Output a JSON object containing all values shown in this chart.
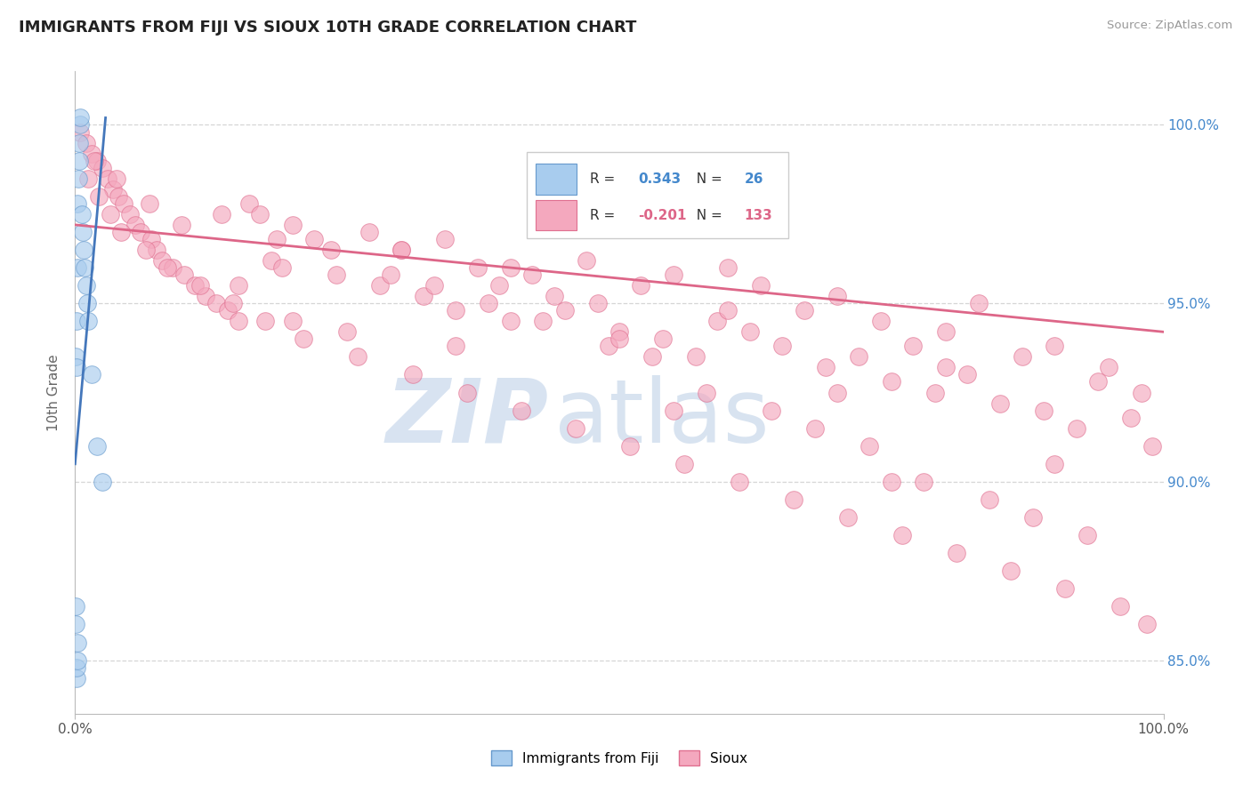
{
  "title": "IMMIGRANTS FROM FIJI VS SIOUX 10TH GRADE CORRELATION CHART",
  "source_text": "Source: ZipAtlas.com",
  "ylabel": "10th Grade",
  "xlim": [
    0.0,
    100.0
  ],
  "ylim": [
    83.5,
    101.5
  ],
  "x_tick_labels": [
    "0.0%",
    "100.0%"
  ],
  "y_tick_labels_right": [
    "85.0%",
    "90.0%",
    "95.0%",
    "100.0%"
  ],
  "y_tick_vals_right": [
    85.0,
    90.0,
    95.0,
    100.0
  ],
  "fiji_R": 0.343,
  "fiji_N": 26,
  "sioux_R": -0.201,
  "sioux_N": 133,
  "fiji_color": "#A8CCEE",
  "sioux_color": "#F4A8BE",
  "fiji_edge_color": "#6699CC",
  "sioux_edge_color": "#E07090",
  "fiji_trend_color": "#4477BB",
  "sioux_trend_color": "#DD6688",
  "dashed_line_color": "#CCCCCC",
  "watermark_zip_color": "#C8D8EC",
  "watermark_atlas_color": "#B8CCE4",
  "fiji_x": [
    0.05,
    0.1,
    0.15,
    0.2,
    0.25,
    0.3,
    0.35,
    0.4,
    0.45,
    0.5,
    0.6,
    0.7,
    0.8,
    0.9,
    1.0,
    1.1,
    1.2,
    1.5,
    2.0,
    2.5,
    0.1,
    0.15,
    0.2,
    0.25,
    0.05,
    0.08
  ],
  "fiji_y": [
    93.5,
    93.2,
    94.5,
    96.0,
    97.8,
    98.5,
    99.0,
    99.5,
    100.0,
    100.2,
    97.5,
    97.0,
    96.5,
    96.0,
    95.5,
    95.0,
    94.5,
    93.0,
    91.0,
    90.0,
    84.5,
    84.8,
    85.0,
    85.5,
    86.0,
    86.5
  ],
  "sioux_x": [
    0.5,
    1.0,
    1.5,
    2.0,
    2.5,
    3.0,
    3.5,
    4.0,
    4.5,
    5.0,
    5.5,
    6.0,
    7.0,
    7.5,
    8.0,
    9.0,
    10.0,
    11.0,
    12.0,
    13.0,
    14.0,
    15.0,
    16.0,
    17.0,
    18.0,
    19.0,
    20.0,
    22.0,
    24.0,
    25.0,
    27.0,
    28.0,
    30.0,
    32.0,
    34.0,
    35.0,
    37.0,
    39.0,
    40.0,
    42.0,
    44.0,
    45.0,
    47.0,
    48.0,
    50.0,
    52.0,
    54.0,
    55.0,
    57.0,
    59.0,
    60.0,
    62.0,
    63.0,
    65.0,
    67.0,
    69.0,
    70.0,
    72.0,
    74.0,
    75.0,
    77.0,
    79.0,
    80.0,
    82.0,
    83.0,
    85.0,
    87.0,
    89.0,
    90.0,
    92.0,
    94.0,
    95.0,
    97.0,
    98.0,
    99.0,
    1.2,
    2.2,
    3.2,
    4.2,
    6.5,
    8.5,
    11.5,
    14.5,
    17.5,
    21.0,
    26.0,
    31.0,
    36.0,
    41.0,
    46.0,
    51.0,
    56.0,
    61.0,
    66.0,
    71.0,
    76.0,
    81.0,
    86.0,
    91.0,
    96.0,
    1.8,
    3.8,
    6.8,
    9.8,
    13.5,
    18.5,
    23.5,
    29.0,
    33.0,
    38.0,
    43.0,
    49.0,
    53.0,
    58.0,
    64.0,
    68.0,
    73.0,
    78.0,
    84.0,
    88.0,
    93.0,
    98.5,
    20.0,
    40.0,
    60.0,
    80.0,
    30.0,
    50.0,
    70.0,
    90.0,
    15.0,
    35.0,
    55.0,
    75.0
  ],
  "sioux_y": [
    99.8,
    99.5,
    99.2,
    99.0,
    98.8,
    98.5,
    98.2,
    98.0,
    97.8,
    97.5,
    97.2,
    97.0,
    96.8,
    96.5,
    96.2,
    96.0,
    95.8,
    95.5,
    95.2,
    95.0,
    94.8,
    94.5,
    97.8,
    97.5,
    96.2,
    96.0,
    94.5,
    96.8,
    95.8,
    94.2,
    97.0,
    95.5,
    96.5,
    95.2,
    96.8,
    94.8,
    96.0,
    95.5,
    94.5,
    95.8,
    95.2,
    94.8,
    96.2,
    95.0,
    94.2,
    95.5,
    94.0,
    95.8,
    93.5,
    94.5,
    96.0,
    94.2,
    95.5,
    93.8,
    94.8,
    93.2,
    95.2,
    93.5,
    94.5,
    92.8,
    93.8,
    92.5,
    94.2,
    93.0,
    95.0,
    92.2,
    93.5,
    92.0,
    93.8,
    91.5,
    92.8,
    93.2,
    91.8,
    92.5,
    91.0,
    98.5,
    98.0,
    97.5,
    97.0,
    96.5,
    96.0,
    95.5,
    95.0,
    94.5,
    94.0,
    93.5,
    93.0,
    92.5,
    92.0,
    91.5,
    91.0,
    90.5,
    90.0,
    89.5,
    89.0,
    88.5,
    88.0,
    87.5,
    87.0,
    86.5,
    99.0,
    98.5,
    97.8,
    97.2,
    97.5,
    96.8,
    96.5,
    95.8,
    95.5,
    95.0,
    94.5,
    93.8,
    93.5,
    92.5,
    92.0,
    91.5,
    91.0,
    90.0,
    89.5,
    89.0,
    88.5,
    86.0,
    97.2,
    96.0,
    94.8,
    93.2,
    96.5,
    94.0,
    92.5,
    90.5,
    95.5,
    93.8,
    92.0,
    90.0
  ],
  "sioux_trend_start_y": 97.2,
  "sioux_trend_end_y": 94.2,
  "fiji_trend_start_x": 0.0,
  "fiji_trend_start_y": 90.5,
  "fiji_trend_end_x": 2.8,
  "fiji_trend_end_y": 100.2
}
